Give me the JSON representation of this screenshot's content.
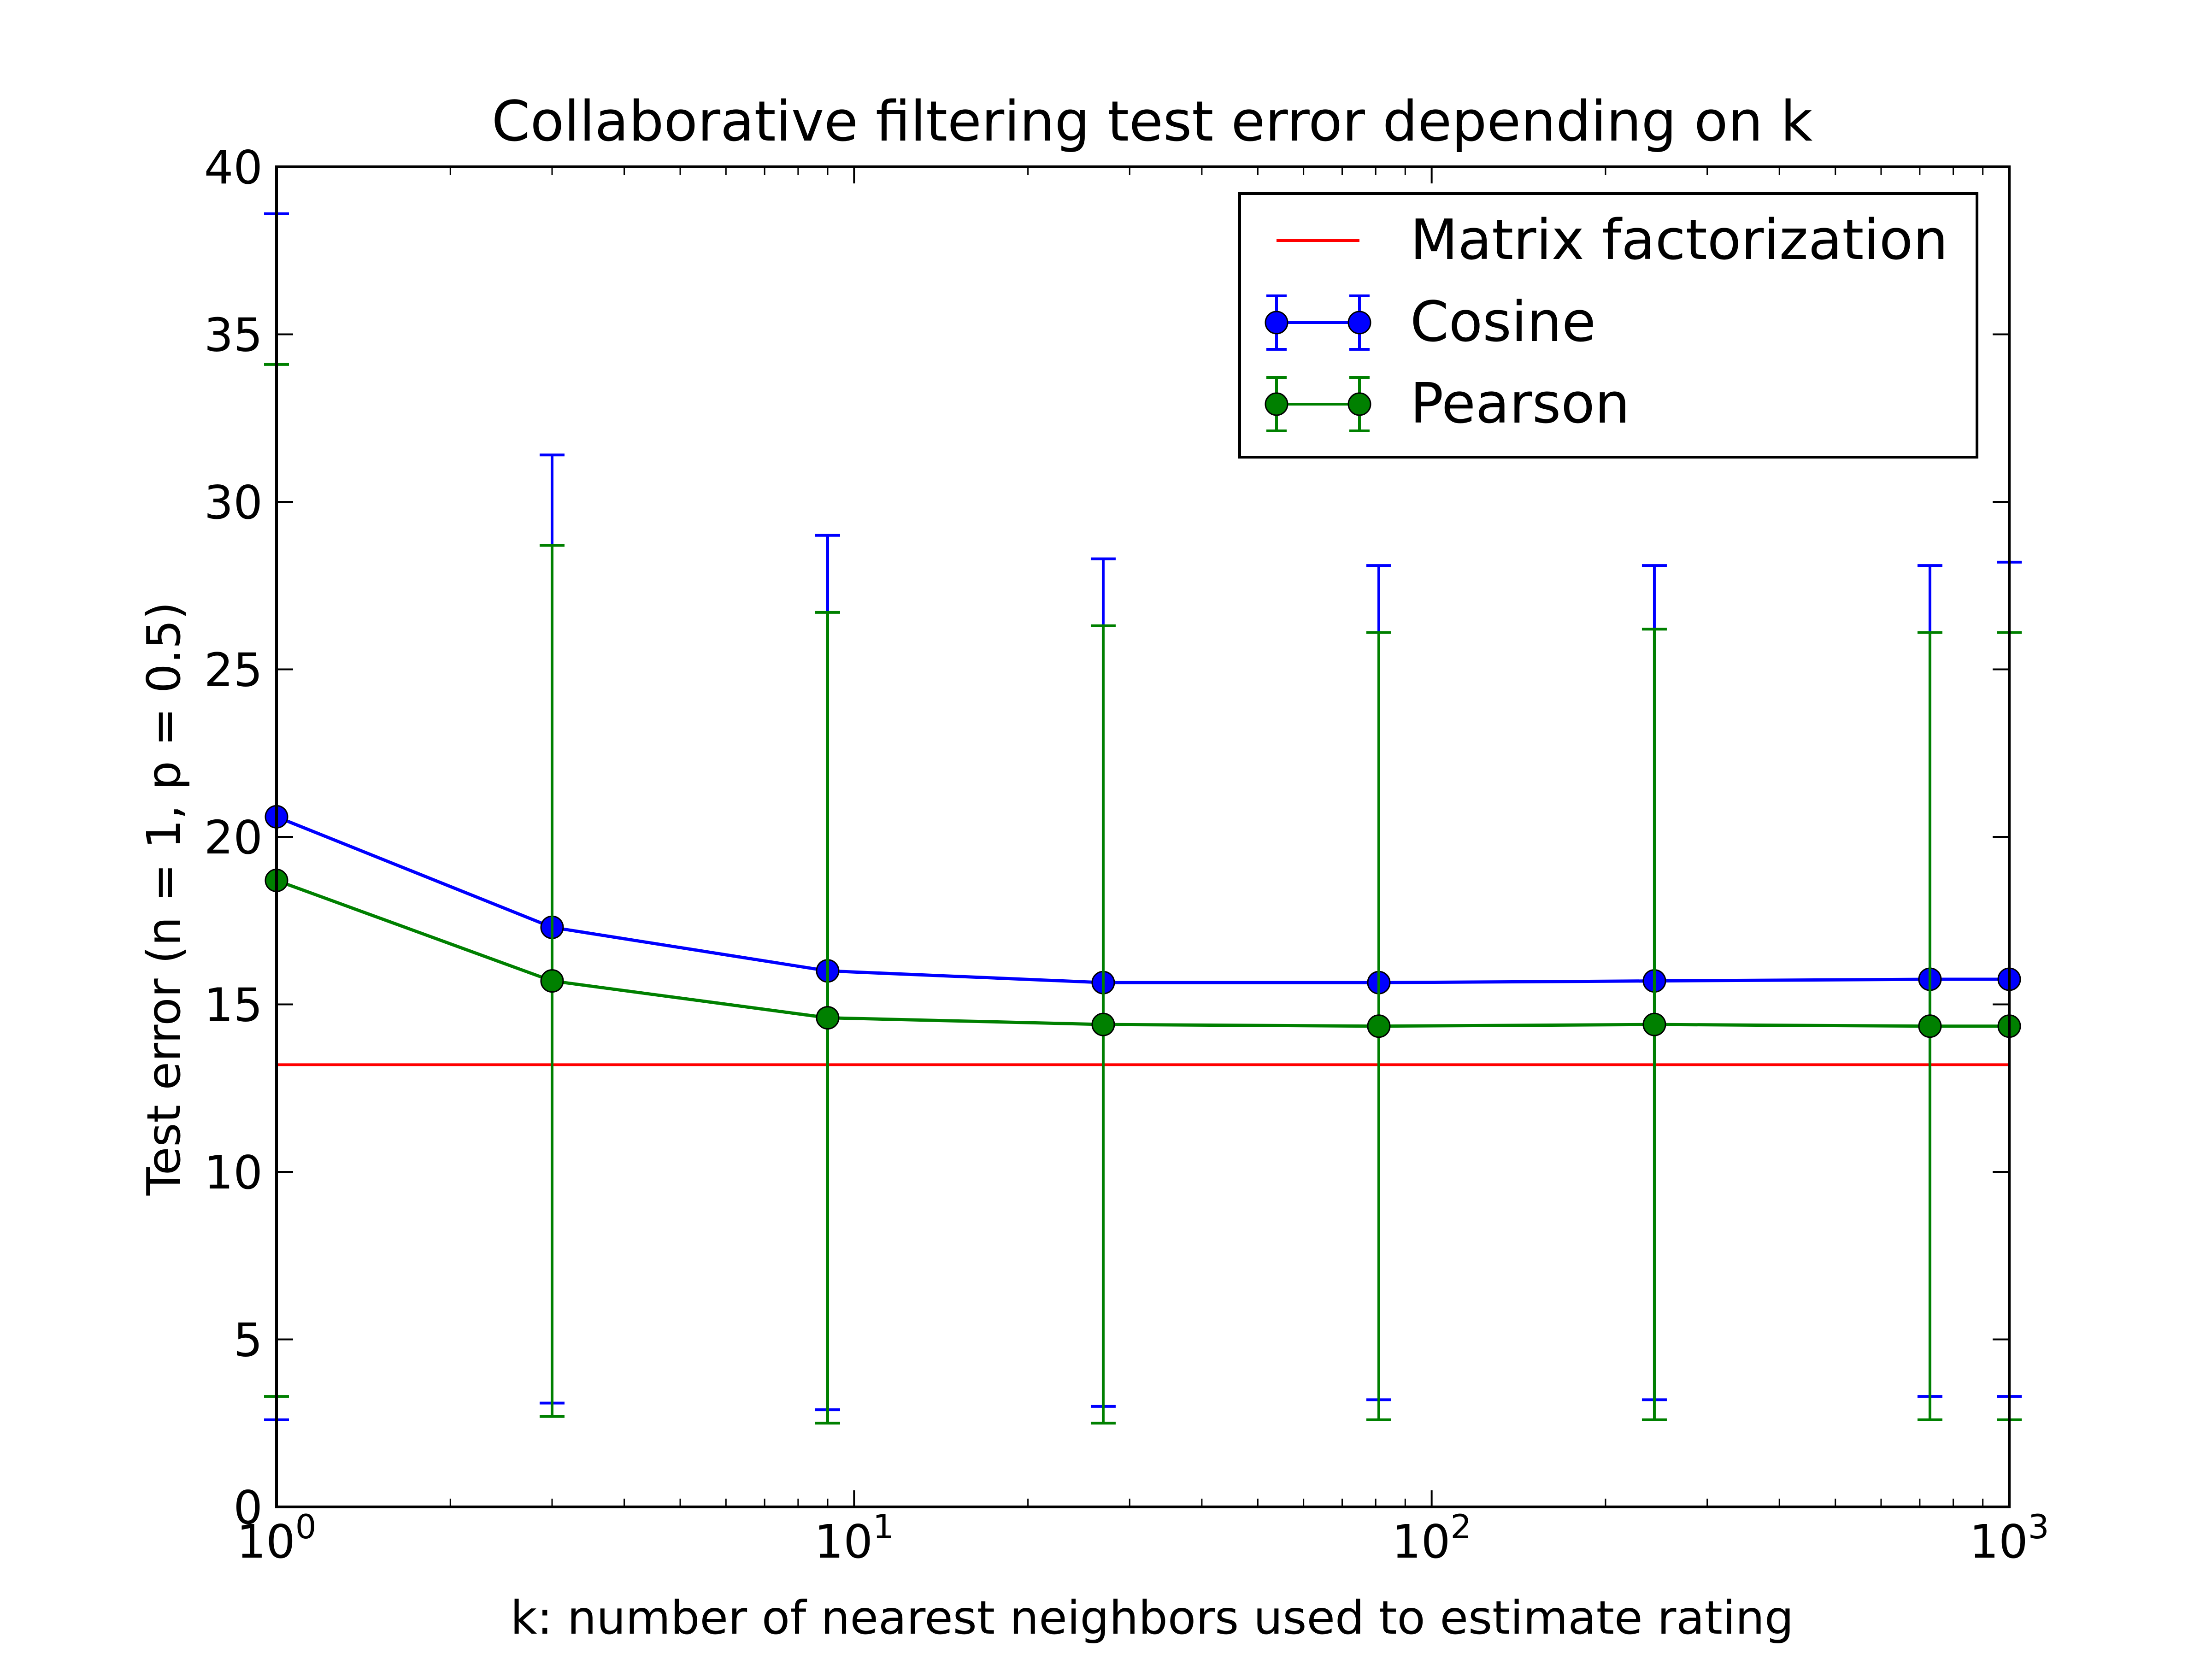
{
  "chart_data": {
    "type": "line",
    "title": "Collaborative filtering test error depending on k",
    "xlabel": "k: number of nearest neighbors used to estimate rating",
    "ylabel": "Test error (n = 1, p = 0.5)",
    "xscale": "log",
    "xlim": [
      1,
      1000
    ],
    "ylim": [
      0,
      40
    ],
    "x_ticks": [
      {
        "value": 1,
        "base": "10",
        "exp": "0"
      },
      {
        "value": 10,
        "base": "10",
        "exp": "1"
      },
      {
        "value": 100,
        "base": "10",
        "exp": "2"
      },
      {
        "value": 1000,
        "base": "10",
        "exp": "3"
      }
    ],
    "y_ticks": [
      {
        "value": 0,
        "label": "0"
      },
      {
        "value": 5,
        "label": "5"
      },
      {
        "value": 10,
        "label": "10"
      },
      {
        "value": 15,
        "label": "15"
      },
      {
        "value": 20,
        "label": "20"
      },
      {
        "value": 25,
        "label": "25"
      },
      {
        "value": 30,
        "label": "30"
      },
      {
        "value": 35,
        "label": "35"
      },
      {
        "value": 40,
        "label": "40"
      }
    ],
    "grid": false,
    "legend_position": "top-right",
    "x": [
      1,
      3,
      9,
      27,
      81,
      243,
      729,
      1000
    ],
    "series": [
      {
        "name": "Cosine",
        "color": "#0000ff",
        "marker": "circle",
        "values": [
          20.6,
          17.3,
          16.0,
          15.65,
          15.65,
          15.7,
          15.75,
          15.75
        ],
        "err_low": [
          2.6,
          3.1,
          2.9,
          3.0,
          3.2,
          3.2,
          3.3,
          3.3
        ],
        "err_high": [
          38.6,
          31.4,
          29.0,
          28.3,
          28.1,
          28.1,
          28.1,
          28.2
        ]
      },
      {
        "name": "Pearson",
        "color": "#008000",
        "marker": "circle",
        "values": [
          18.7,
          15.7,
          14.6,
          14.4,
          14.35,
          14.4,
          14.35,
          14.35
        ],
        "err_low": [
          3.3,
          2.7,
          2.5,
          2.5,
          2.6,
          2.6,
          2.6,
          2.6
        ],
        "err_high": [
          34.1,
          28.7,
          26.7,
          26.3,
          26.1,
          26.2,
          26.1,
          26.1
        ]
      },
      {
        "name": "Matrix factorization",
        "color": "#ff0000",
        "style": "horizontal-line",
        "value": 13.2
      }
    ]
  }
}
